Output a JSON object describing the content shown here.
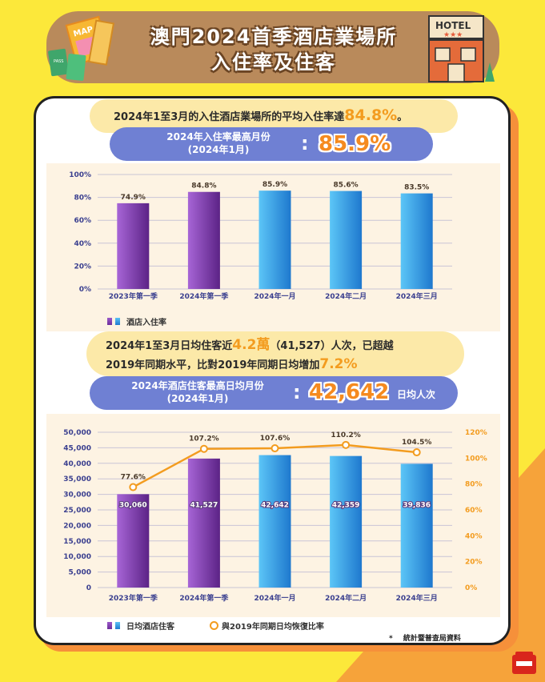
{
  "header": {
    "title_line1": "澳門2024首季酒店業場所",
    "title_line2": "入住率及住客",
    "hotel_sign": "HOTEL",
    "map_label": "MAP",
    "pass_label": "PASS"
  },
  "section1": {
    "summary_text": "2024年1至3月的入住酒店業場所的平均入住率達",
    "summary_value": "84.8%",
    "summary_end": "。",
    "peak_label_line1": "2024年入住率最高月份",
    "peak_label_line2": "(2024年1月)",
    "peak_colon": ":",
    "peak_value": "85.9%",
    "legend_label": "酒店入住率"
  },
  "section2": {
    "summary_line1_a": "2024年1至3月日均住客近",
    "summary_line1_b": "4.2萬",
    "summary_line1_c": "（41,527）人次，已超越",
    "summary_line2_a": "2019年同期水平，比對2019年同期日均增加",
    "summary_line2_b": "7.2%",
    "peak_label_line1": "2024年酒店住客最高日均月份",
    "peak_label_line2": "(2024年1月)",
    "peak_colon": ":",
    "peak_value": "42,642",
    "peak_unit": "日均人次",
    "legend_bar": "日均酒店住客",
    "legend_line": "與2019年同期日均恢復比率"
  },
  "footer": {
    "source_star": "*",
    "source": "統計暨普查局資料"
  },
  "colors": {
    "purple": "#7B3FA5",
    "blue": "#2E9AE0",
    "orange": "#F39C1F",
    "pill_blue": "#6F80D3"
  },
  "chart_data": [
    {
      "type": "bar",
      "categories": [
        "2023年第一季",
        "2024年第一季",
        "2024年一月",
        "2024年二月",
        "2024年三月"
      ],
      "values": [
        74.9,
        84.8,
        85.9,
        85.6,
        83.5
      ],
      "value_labels": [
        "74.9%",
        "84.8%",
        "85.9%",
        "85.6%",
        "83.5%"
      ],
      "bar_colors": [
        "purple",
        "purple",
        "blue",
        "blue",
        "blue"
      ],
      "ylim": [
        0,
        100
      ],
      "yticks": [
        "0%",
        "20%",
        "40%",
        "60%",
        "80%",
        "100%"
      ],
      "grid": true,
      "legend": "bottom-left"
    },
    {
      "type": "bar",
      "categories": [
        "2023年第一季",
        "2024年第一季",
        "2024年一月",
        "2024年二月",
        "2024年三月"
      ],
      "series": [
        {
          "name": "日均酒店住客",
          "values": [
            30060,
            41527,
            42642,
            42359,
            39836
          ],
          "labels": [
            "30,060",
            "41,527",
            "42,642",
            "42,359",
            "39,836"
          ]
        },
        {
          "name": "與2019年同期日均恢復比率",
          "type": "line",
          "axis": "right",
          "values": [
            77.6,
            107.2,
            107.6,
            110.2,
            104.5
          ],
          "labels": [
            "77.6%",
            "107.2%",
            "107.6%",
            "110.2%",
            "104.5%"
          ]
        }
      ],
      "ylim": [
        0,
        50000
      ],
      "yticks": [
        "0",
        "5,000",
        "10,000",
        "15,000",
        "20,000",
        "25,000",
        "30,000",
        "35,000",
        "40,000",
        "45,000",
        "50,000"
      ],
      "y2lim": [
        0,
        120
      ],
      "y2ticks": [
        "0%",
        "20%",
        "40%",
        "60%",
        "80%",
        "100%",
        "120%"
      ],
      "grid": true,
      "legend": "bottom-left"
    }
  ]
}
